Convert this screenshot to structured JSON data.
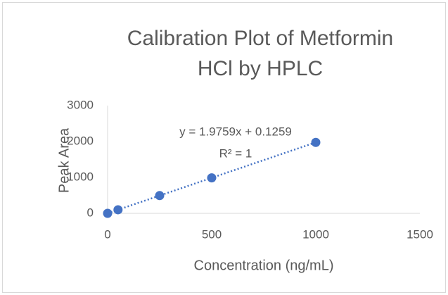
{
  "chart_data": {
    "type": "scatter",
    "title": "Calibration Plot of Metformin HCl by HPLC",
    "x_label": "Concentration (ng/mL)",
    "y_label": "Peak Area",
    "series": [
      {
        "x": [
          0,
          50,
          250,
          500,
          1000
        ],
        "values": [
          0,
          99,
          494,
          988,
          1976
        ],
        "color": "#4472c4"
      }
    ],
    "trendline": true,
    "annotations": [
      "y = 1.9759x + 0.1259",
      "R² = 1"
    ],
    "xlim": [
      0,
      1500
    ],
    "xticks": [
      0,
      500,
      1000,
      1500
    ],
    "ylim": [
      0,
      3000
    ],
    "yticks": [
      0,
      1000,
      2000,
      3000
    ],
    "grid": false
  }
}
